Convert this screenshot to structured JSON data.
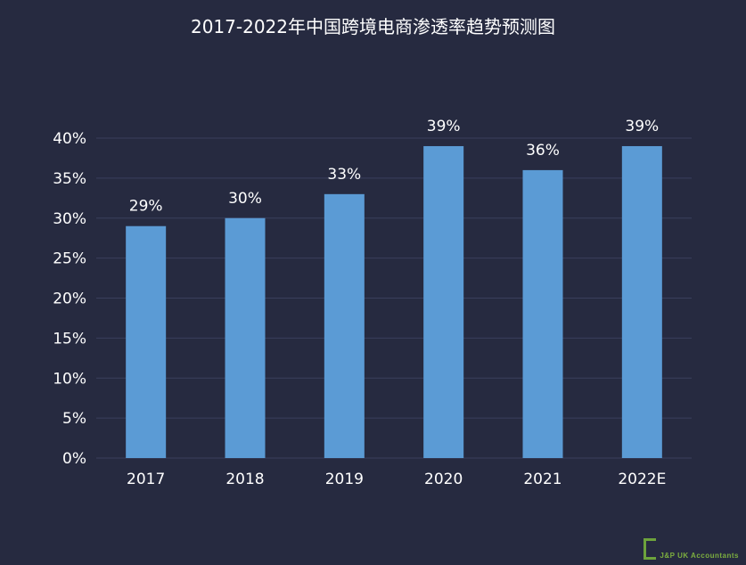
{
  "chart_data": {
    "type": "bar",
    "title": "2017-2022年中国跨境电商渗透率趋势预测图",
    "categories": [
      "2017",
      "2018",
      "2019",
      "2020",
      "2021",
      "2022E"
    ],
    "values": [
      29,
      30,
      33,
      39,
      36,
      39
    ],
    "data_labels": [
      "29%",
      "30%",
      "33%",
      "39%",
      "36%",
      "39%"
    ],
    "ylim": [
      0,
      40
    ],
    "yticks": [
      0,
      5,
      10,
      15,
      20,
      25,
      30,
      35,
      40
    ],
    "ytick_labels": [
      "0%",
      "5%",
      "10%",
      "15%",
      "20%",
      "25%",
      "30%",
      "35%",
      "40%"
    ],
    "grid": true,
    "colors": {
      "background": "#262a40",
      "bar": "#5b9bd5",
      "grid": "#3a3f5c",
      "text": "#ffffff"
    }
  },
  "watermark": {
    "text": "J&P UK Accountants"
  }
}
